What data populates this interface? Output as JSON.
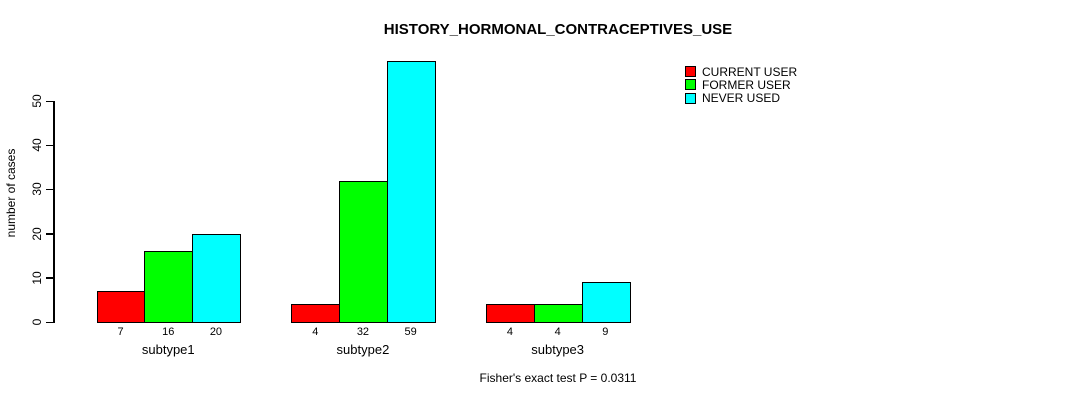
{
  "title": "HISTORY_HORMONAL_CONTRACEPTIVES_USE",
  "ylabel": "number of cases",
  "footer": "Fisher's exact test P = 0.0311",
  "chart_data": {
    "type": "bar",
    "title": "HISTORY_HORMONAL_CONTRACEPTIVES_USE",
    "categories": [
      "subtype1",
      "subtype2",
      "subtype3"
    ],
    "series": [
      {
        "name": "CURRENT USER",
        "color": "#FF0000",
        "values": [
          7,
          4,
          4
        ]
      },
      {
        "name": "FORMER USER",
        "color": "#00FF00",
        "values": [
          16,
          32,
          4
        ]
      },
      {
        "name": "NEVER USED",
        "color": "#00FFFF",
        "values": [
          20,
          59,
          9
        ]
      }
    ],
    "xlabel": "",
    "ylabel": "number of cases",
    "yticks": [
      0,
      10,
      20,
      30,
      40,
      50
    ],
    "ylim": [
      0,
      59
    ],
    "grid": false,
    "bar_value_labels_shown": true,
    "legend_position": "top-right",
    "annotation": "Fisher's exact test P = 0.0311"
  }
}
